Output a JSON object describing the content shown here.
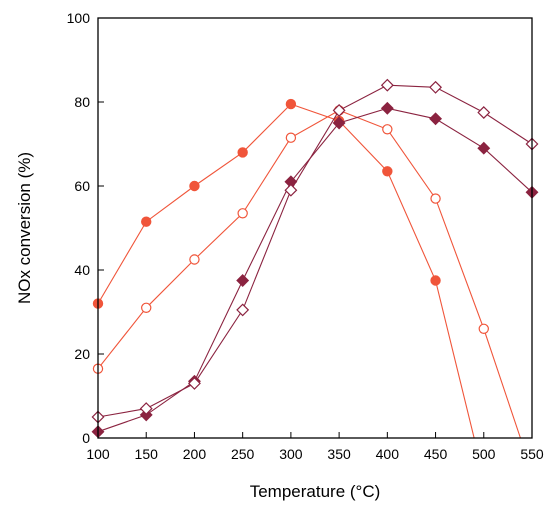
{
  "chart_data": {
    "type": "line",
    "title": "",
    "xlabel": "Temperature (°C)",
    "ylabel": "NOx conversion (%)",
    "xlim": [
      100,
      550
    ],
    "ylim": [
      0,
      100
    ],
    "xticks": [
      100,
      150,
      200,
      250,
      300,
      350,
      400,
      450,
      500,
      550
    ],
    "yticks": [
      0,
      20,
      40,
      60,
      80,
      100
    ],
    "grid": false,
    "legend": "none",
    "series": [
      {
        "color": "#f0553a",
        "marker": "circle",
        "filled": true,
        "x": [
          100,
          150,
          200,
          250,
          300,
          350,
          400,
          450,
          490
        ],
        "y": [
          32,
          51.5,
          60,
          68,
          79.5,
          75.5,
          63.5,
          37.5,
          0
        ]
      },
      {
        "color": "#f0553a",
        "marker": "circle",
        "filled": false,
        "x": [
          100,
          150,
          200,
          250,
          300,
          350,
          400,
          450,
          500,
          538
        ],
        "y": [
          16.5,
          31,
          42.5,
          53.5,
          71.5,
          78,
          73.5,
          57,
          26,
          0
        ]
      },
      {
        "color": "#8b2340",
        "marker": "diamond",
        "filled": true,
        "x": [
          100,
          150,
          200,
          250,
          300,
          350,
          400,
          450,
          500,
          550
        ],
        "y": [
          1.5,
          5.5,
          13.5,
          37.5,
          61,
          75,
          78.5,
          76,
          69,
          58.5
        ]
      },
      {
        "color": "#8b2340",
        "marker": "diamond",
        "filled": false,
        "x": [
          100,
          150,
          200,
          250,
          300,
          350,
          400,
          450,
          500,
          550
        ],
        "y": [
          5,
          7,
          13,
          30.5,
          59,
          78,
          84,
          83.5,
          77.5,
          70
        ]
      }
    ]
  }
}
